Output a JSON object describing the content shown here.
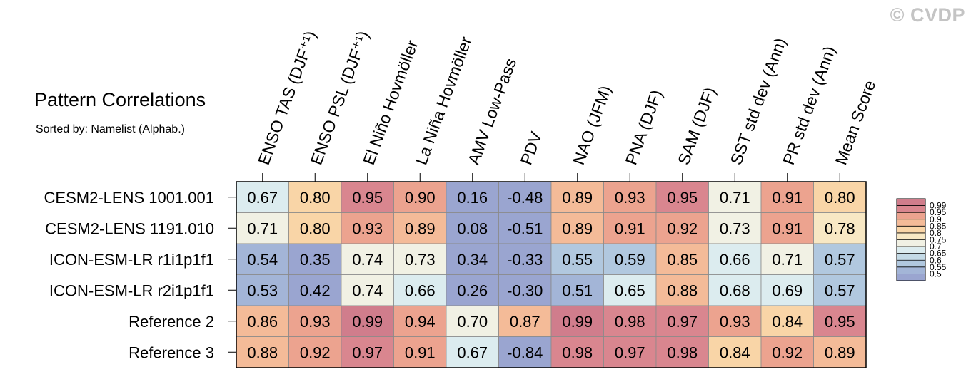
{
  "watermark": "© CVDP",
  "chart_data": {
    "type": "heatmap",
    "title": "Pattern Correlations",
    "subtitle": "Sorted by: Namelist (Alphab.)",
    "columns": [
      "ENSO TAS (DJF⁺¹)",
      "ENSO PSL (DJF⁺¹)",
      "El Niño Hovmöller",
      "La Niña Hovmöller",
      "AMV Low-Pass",
      "PDV",
      "NAO (JFM)",
      "PNA (DJF)",
      "SAM (DJF)",
      "SST std dev (Ann)",
      "PR std dev (Ann)",
      "Mean Score"
    ],
    "rows": [
      "CESM2-LENS 1001.001",
      "CESM2-LENS 1191.010",
      "ICON-ESM-LR r1i1p1f1",
      "ICON-ESM-LR r2i1p1f1",
      "Reference 2",
      "Reference 3"
    ],
    "values": [
      [
        0.67,
        0.8,
        0.95,
        0.9,
        0.16,
        -0.48,
        0.89,
        0.93,
        0.95,
        0.71,
        0.91,
        0.8
      ],
      [
        0.71,
        0.8,
        0.93,
        0.89,
        0.08,
        -0.51,
        0.89,
        0.91,
        0.92,
        0.73,
        0.91,
        0.78
      ],
      [
        0.54,
        0.35,
        0.74,
        0.73,
        0.34,
        -0.33,
        0.55,
        0.59,
        0.85,
        0.66,
        0.71,
        0.57
      ],
      [
        0.53,
        0.42,
        0.74,
        0.66,
        0.26,
        -0.3,
        0.51,
        0.65,
        0.88,
        0.68,
        0.69,
        0.57
      ],
      [
        0.86,
        0.93,
        0.99,
        0.94,
        0.7,
        0.87,
        0.99,
        0.98,
        0.97,
        0.93,
        0.84,
        0.95
      ],
      [
        0.88,
        0.92,
        0.97,
        0.91,
        0.67,
        -0.84,
        0.98,
        0.97,
        0.98,
        0.84,
        0.92,
        0.89
      ]
    ],
    "value_labels": [
      [
        "0.67",
        "0.80",
        "0.95",
        "0.90",
        "0.16",
        "-0.48",
        "0.89",
        "0.93",
        "0.95",
        "0.71",
        "0.91",
        "0.80"
      ],
      [
        "0.71",
        "0.80",
        "0.93",
        "0.89",
        "0.08",
        "-0.51",
        "0.89",
        "0.91",
        "0.92",
        "0.73",
        "0.91",
        "0.78"
      ],
      [
        "0.54",
        "0.35",
        "0.74",
        "0.73",
        "0.34",
        "-0.33",
        "0.55",
        "0.59",
        "0.85",
        "0.66",
        "0.71",
        "0.57"
      ],
      [
        "0.53",
        "0.42",
        "0.74",
        "0.66",
        "0.26",
        "-0.30",
        "0.51",
        "0.65",
        "0.88",
        "0.68",
        "0.69",
        "0.57"
      ],
      [
        "0.86",
        "0.93",
        "0.99",
        "0.94",
        "0.70",
        "0.87",
        "0.99",
        "0.98",
        "0.97",
        "0.93",
        "0.84",
        "0.95"
      ],
      [
        "0.88",
        "0.92",
        "0.97",
        "0.91",
        "0.67",
        "-0.84",
        "0.98",
        "0.97",
        "0.98",
        "0.84",
        "0.92",
        "0.89"
      ]
    ],
    "colorbar": {
      "levels": [
        0.5,
        0.55,
        0.6,
        0.65,
        0.7,
        0.75,
        0.8,
        0.85,
        0.9,
        0.95,
        0.99
      ],
      "labels": [
        "0.5",
        "0.55",
        "0.6",
        "0.65",
        "0.7",
        "0.75",
        "0.8",
        "0.85",
        "0.9",
        "0.95",
        "0.99"
      ],
      "colors": [
        "#9aa5d0",
        "#a3b5d7",
        "#b1c8df",
        "#c4dae6",
        "#dcecef",
        "#f1f1e4",
        "#f8e8c4",
        "#f9d5a7",
        "#f4bb98",
        "#eca38f",
        "#d9868f",
        "#d07d8c"
      ]
    }
  }
}
